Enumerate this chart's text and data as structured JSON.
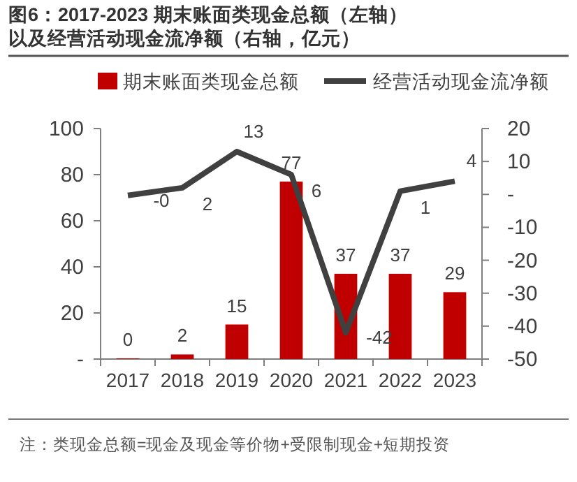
{
  "chart_data": {
    "type": "bar",
    "title": "图6：2017-2023 期末账面类现金总额（左轴）以及经营活动现金流净额（右轴，亿元）",
    "categories": [
      "2017",
      "2018",
      "2019",
      "2020",
      "2021",
      "2022",
      "2023"
    ],
    "series": [
      {
        "name": "期末账面类现金总额",
        "color": "#c00000",
        "values": [
          0.3,
          2,
          15,
          77,
          37,
          37,
          29
        ],
        "value_labels": [
          "0",
          "2",
          "15",
          "77",
          "37",
          "37",
          "29"
        ]
      },
      {
        "name": "经营活动现金流净额",
        "type": "line",
        "axis": "y2",
        "color": "#404040",
        "marker": "none",
        "line_style": "solid",
        "values": [
          -0.3,
          2,
          13,
          6,
          -42,
          1,
          4
        ],
        "value_labels": [
          "-0",
          "2",
          "13",
          "6",
          "-42",
          "1",
          "4"
        ]
      }
    ],
    "ylim": [
      0,
      100
    ],
    "yticks": [
      {
        "value": 0,
        "label": "-"
      },
      20,
      40,
      60,
      80,
      100
    ],
    "y2lim": [
      -50,
      20
    ],
    "y2ticks": [
      -50,
      -40,
      -30,
      -20,
      -10,
      {
        "value": 0,
        "label": "-"
      },
      10,
      20
    ],
    "legend": "top",
    "grid": false,
    "annotations": [
      "注：类现金总额=现金及现金等价物+受限制现金+短期投资"
    ]
  }
}
